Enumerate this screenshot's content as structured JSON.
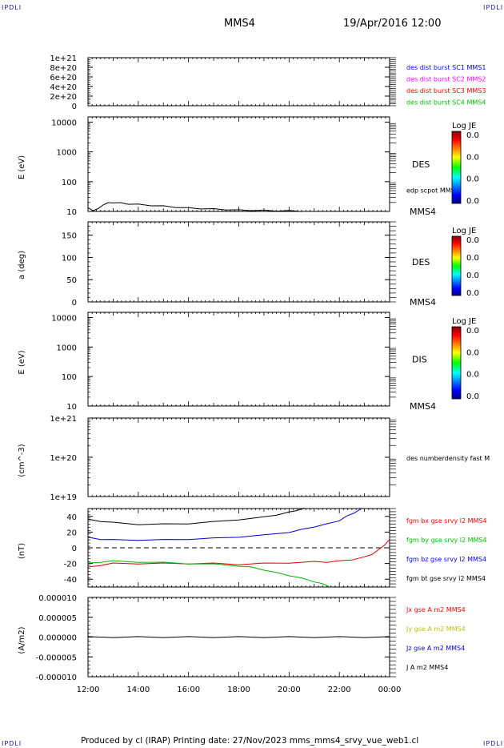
{
  "corner_marks": {
    "tl": "IPDLI",
    "tr": "IPDLI",
    "bl": "IPDLI",
    "br": "IPDLI"
  },
  "header": {
    "spacecraft": "MMS4",
    "datetime": "19/Apr/2016 12:00"
  },
  "footer": {
    "text": "Produced by cl (IRAP)   Printing date: 27/Nov/2023   mms_mms4_srvy_vue_web1.cl"
  },
  "time_axis": {
    "ticks": [
      "12:00",
      "14:00",
      "16:00",
      "18:00",
      "20:00",
      "22:00",
      "00:00"
    ]
  },
  "chart_data": [
    {
      "type": "line",
      "panel": "burst",
      "ylim": [
        0,
        1e+21
      ],
      "ytick_labels": [
        "1e+21",
        "8e+20",
        "6e+20",
        "4e+20",
        "2e+20",
        "0"
      ],
      "ytick_values": [
        1e+21,
        8e+20,
        6e+20,
        4e+20,
        2e+20,
        0
      ],
      "dashed_zero": true,
      "legend": [
        {
          "text": "des dist burst SC1 MMS1",
          "color": "#0000ff"
        },
        {
          "text": "des dist burst SC2 MMS2",
          "color": "#ff00ff"
        },
        {
          "text": "des dist burst SC3 MMS3",
          "color": "#ff0000"
        },
        {
          "text": "des dist burst SC4 MMS4",
          "color": "#00c000"
        }
      ]
    },
    {
      "type": "heatmap",
      "panel": "des-energy",
      "ylabel": "E (eV)",
      "yscale": "log",
      "ylim": [
        10,
        15000
      ],
      "ytick_labels": [
        "10000",
        "1000",
        "100",
        "10"
      ],
      "ytick_values": [
        10000,
        1000,
        100,
        10
      ],
      "instrument": "DES",
      "station": "MMS4",
      "overlay_label": "edp scpot MMS4",
      "colorbar": {
        "title": "Log JE",
        "labels": [
          "0.0",
          "0.0",
          "0.0",
          "0.0"
        ]
      },
      "series": [
        {
          "name": "edp scpot MMS4",
          "color": "#000000",
          "x": [
            12.0,
            12.2,
            12.4,
            12.6,
            12.8,
            13.0,
            13.3,
            13.6,
            14.0,
            14.5,
            15.0,
            15.5,
            16.0,
            16.5,
            17.0,
            17.5,
            18.0,
            18.5,
            19.0,
            19.5,
            20.0,
            20.5
          ],
          "y": [
            13,
            11,
            12,
            17,
            19,
            20,
            19,
            18,
            17,
            16,
            15,
            14,
            13,
            12.5,
            12,
            11.5,
            11,
            11,
            10.8,
            10.6,
            10.4,
            10.2
          ]
        }
      ]
    },
    {
      "type": "heatmap",
      "panel": "des-pitch",
      "ylabel": "a (deg)",
      "ylim": [
        0,
        180
      ],
      "ytick_labels": [
        "150",
        "100",
        "50",
        "0"
      ],
      "ytick_values": [
        150,
        100,
        50,
        0
      ],
      "instrument": "DES",
      "station": "MMS4",
      "colorbar": {
        "title": "Log JE",
        "labels": [
          "0.0",
          "0.0",
          "0.0",
          "0.0"
        ]
      }
    },
    {
      "type": "heatmap",
      "panel": "dis-energy",
      "ylabel": "E (eV)",
      "yscale": "log",
      "ylim": [
        10,
        15000
      ],
      "ytick_labels": [
        "10000",
        "1000",
        "100",
        "10"
      ],
      "ytick_values": [
        10000,
        1000,
        100,
        10
      ],
      "instrument": "DIS",
      "station": "MMS4",
      "colorbar": {
        "title": "Log JE",
        "labels": [
          "0.0",
          "0.0",
          "0.0",
          "0.0"
        ]
      }
    },
    {
      "type": "line",
      "panel": "density",
      "ylabel": "(cm^-3)",
      "yscale": "log",
      "ylim": [
        1e+19,
        1e+21
      ],
      "ytick_labels": [
        "1e+21",
        "1e+20",
        "1e+19"
      ],
      "ytick_values": [
        1e+21,
        1e+20,
        1e+19
      ],
      "legend": [
        {
          "text": "des numberdensity fast M",
          "color": "#000000"
        }
      ]
    },
    {
      "type": "line",
      "panel": "fgm",
      "ylabel": "(nT)",
      "ylim": [
        -50,
        50
      ],
      "ytick_labels": [
        "40",
        "20",
        "0",
        "-20",
        "-40"
      ],
      "ytick_values": [
        40,
        20,
        0,
        -20,
        -40
      ],
      "dashed_zero": true,
      "series": [
        {
          "name": "fgm bt gse srvy l2 MMS4",
          "color": "#000000",
          "x": [
            12.0,
            12.5,
            13.0,
            14.0,
            15.0,
            16.0,
            17.0,
            18.0,
            19.0,
            19.5,
            20.0,
            20.3,
            20.6
          ],
          "y": [
            36,
            34,
            32,
            30,
            30,
            31,
            33,
            36,
            39,
            42,
            45,
            48,
            50
          ]
        },
        {
          "name": "fgm bz gse srvy l2 MMS4",
          "color": "#0000c0",
          "x": [
            12.0,
            12.5,
            13.0,
            14.0,
            15.0,
            16.0,
            17.0,
            18.0,
            19.0,
            20.0,
            20.5,
            21.0,
            21.5,
            22.0,
            22.3,
            22.6,
            22.9
          ],
          "y": [
            13,
            11,
            10,
            10,
            10,
            11,
            12,
            14,
            16,
            20,
            23,
            27,
            30,
            35,
            40,
            45,
            50
          ]
        },
        {
          "name": "fgm bx gse srvy l2 MMS4",
          "color": "#e00000",
          "x": [
            12.0,
            12.5,
            13.0,
            14.0,
            15.0,
            16.0,
            17.0,
            18.0,
            19.0,
            20.0,
            21.0,
            21.5,
            22.0,
            22.5,
            23.0,
            23.3,
            23.6,
            23.8,
            24.0
          ],
          "y": [
            -25,
            -22,
            -20,
            -20,
            -20,
            -20,
            -20,
            -21,
            -20,
            -19,
            -18,
            -18,
            -17,
            -15,
            -12,
            -8,
            -2,
            4,
            10
          ]
        },
        {
          "name": "fgm by gse srvy l2 MMS4",
          "color": "#00b000",
          "x": [
            12.0,
            12.5,
            13.0,
            14.0,
            15.0,
            16.0,
            17.0,
            18.0,
            18.5,
            19.0,
            19.5,
            20.0,
            20.5,
            21.0,
            21.3,
            21.6
          ],
          "y": [
            -20,
            -18,
            -17,
            -18,
            -19,
            -20,
            -21,
            -23,
            -25,
            -28,
            -32,
            -35,
            -39,
            -43,
            -46,
            -49
          ]
        }
      ],
      "legend": [
        {
          "text": "fgm bx gse srvy l2 MMS4",
          "color": "#ff0000"
        },
        {
          "text": "fgm by gse srvy l2 MMS4",
          "color": "#00c000"
        },
        {
          "text": "fgm bz gse srvy l2 MMS4",
          "color": "#0000ff"
        },
        {
          "text": "fgm bt gse srvy l2 MMS4",
          "color": "#000000"
        }
      ]
    },
    {
      "type": "line",
      "panel": "current",
      "ylabel": "(A/m2)",
      "ylim": [
        -1e-05,
        1e-05
      ],
      "ytick_labels": [
        "0.000010",
        "0.000005",
        "0.000000",
        "-0.000005",
        "-0.000010"
      ],
      "ytick_values": [
        1e-05,
        5e-06,
        0,
        -5e-06,
        -1e-05
      ],
      "series": [
        {
          "name": "J A m2 MMS4",
          "color": "#000000",
          "x": [
            12.0,
            13.0,
            14.0,
            15.0,
            16.0,
            17.0,
            18.0,
            19.0,
            20.0,
            21.0,
            22.0,
            23.0,
            24.0
          ],
          "y": [
            0,
            0,
            0,
            0,
            0,
            0,
            0,
            0,
            0,
            0,
            0,
            0,
            0
          ]
        }
      ],
      "legend": [
        {
          "text": "Jx gse A m2 MMS4",
          "color": "#ff0000"
        },
        {
          "text": "Jy gse A m2 MMS4",
          "color": "#c0c000"
        },
        {
          "text": "Jz gse A m2 MMS4",
          "color": "#0000ff"
        },
        {
          "text": "J A m2 MMS4",
          "color": "#000000"
        }
      ]
    }
  ]
}
